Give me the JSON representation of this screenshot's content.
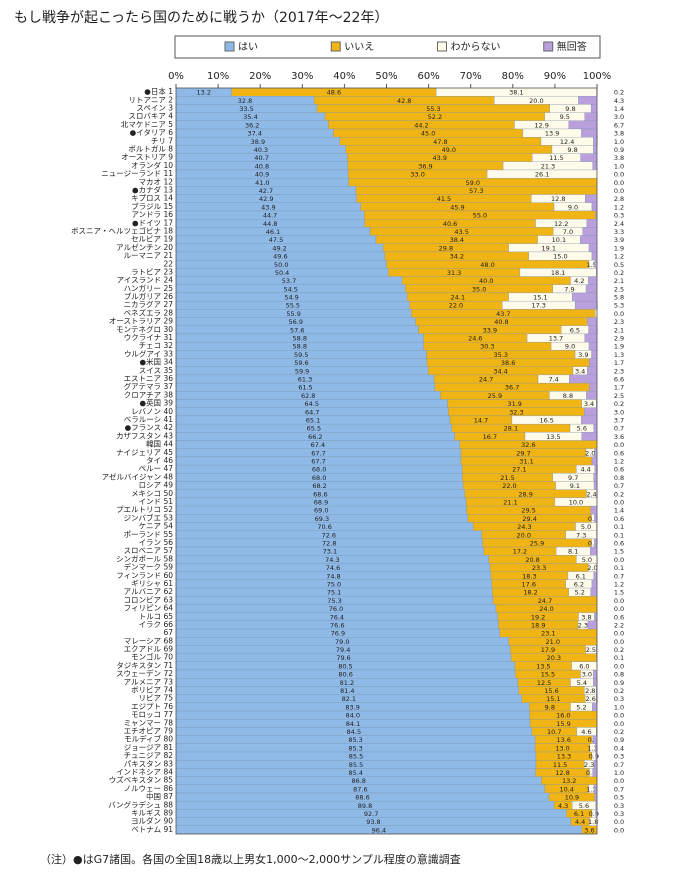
{
  "chart_data": {
    "type": "stacked_barh",
    "title": "もし戦争が起こったら国のために戦うか（2017年～22年）",
    "note": "（注）●はG7諸国。各国の全国18歳以上男女1,000～2,000サンプル程度の意識調査",
    "categories": [
      "●日本 1",
      "リトアニア 2",
      "スペイン 3",
      "スロバキア 4",
      "北マケドニア 5",
      "●イタリア 6",
      "チリ 7",
      "ポルトガル 8",
      "オーストリア 9",
      "オランダ 10",
      "ニュージーランド 11",
      "マカオ 12",
      "●カナダ 13",
      "キプロス 14",
      "ブラジル 15",
      "アンドラ 16",
      "●ドイツ 17",
      "ボスニア・ヘルツェゴビナ 18",
      "セルビア 19",
      "アルゼンチン 20",
      "ルーマニア 21",
      "22",
      "ラトビア 23",
      "アイスランド 24",
      "ハンガリー 25",
      "ブルガリア 26",
      "ニカラグア 27",
      "ベネズエラ 28",
      "オーストラリア 29",
      "モンテネグロ 30",
      "ウクライナ 31",
      "チェコ 32",
      "ウルグアイ 33",
      "●米国 34",
      "スイス 35",
      "エストニア 36",
      "グアテマラ 37",
      "クロアチア 38",
      "●英国 39",
      "レバノン 40",
      "ベラルーシ 41",
      "●フランス 42",
      "カザフスタン 43",
      "韓国 44",
      "ナイジェリア 45",
      "タイ 46",
      "ペルー 47",
      "アゼルバイジャン 48",
      "ロシア 49",
      "メキシコ 50",
      "インド 51",
      "プエルトリコ 52",
      "ジンバブエ 53",
      "ケニア 54",
      "ポーランド 55",
      "イラン 56",
      "スロベニア 57",
      "シンガポール 58",
      "デンマーク 59",
      "フィンランド 60",
      "ギリシャ 61",
      "アルバニア 62",
      "コロンビア 63",
      "フィリピン 64",
      "トルコ 65",
      "イラク 66",
      "67",
      "マレーシア 68",
      "エクアドル 69",
      "モンゴル 70",
      "タジキスタン 71",
      "スウェーデン 72",
      "アルメニア 73",
      "ボリビア 74",
      "リビア 75",
      "エジプト 76",
      "モロッコ 77",
      "ミャンマー 78",
      "エチオピア 79",
      "モルディブ 80",
      "ジョージア 81",
      "チュニジア 82",
      "パキスタン 83",
      "インドネシア 84",
      "ウズベキスタン 85",
      "ノルウェー 86",
      "中国 87",
      "バングラデシュ 88",
      "キルギス 89",
      "ヨルダン 90",
      "ベトナム 91"
    ],
    "series": [
      {
        "name": "はい",
        "color": "#8fb9e6",
        "values": [
          13.2,
          32.8,
          33.5,
          35.4,
          36.2,
          37.4,
          38.9,
          40.3,
          40.7,
          40.8,
          40.9,
          41.0,
          42.7,
          42.9,
          43.9,
          44.7,
          44.8,
          46.1,
          47.5,
          49.2,
          49.6,
          50.0,
          50.4,
          53.7,
          54.5,
          54.9,
          55.5,
          55.9,
          56.9,
          57.6,
          58.8,
          58.8,
          59.5,
          59.6,
          59.9,
          61.3,
          61.5,
          62.8,
          64.5,
          64.7,
          65.1,
          65.5,
          66.2,
          67.4,
          67.7,
          67.7,
          68.0,
          68.0,
          68.2,
          68.6,
          68.9,
          69.0,
          69.3,
          70.6,
          72.6,
          72.8,
          73.1,
          74.3,
          74.6,
          74.8,
          75.0,
          75.1,
          75.3,
          76.0,
          76.4,
          76.6,
          76.9,
          79.0,
          79.4,
          79.6,
          80.5,
          80.6,
          81.2,
          81.4,
          82.1,
          83.9,
          84.0,
          84.1,
          84.5,
          85.3,
          85.3,
          85.5,
          85.5,
          85.4,
          86.8,
          87.6,
          88.6,
          89.8,
          92.7,
          93.8,
          96.4
        ],
        "value_labels": [
          "13.2",
          "32.8",
          "33.5",
          "35.4",
          "36.2",
          "37.4",
          "38.9",
          "40.3",
          "40.7",
          "40.8",
          "40.9",
          "41.0",
          "42.7",
          "42.9",
          "43.9",
          "44.7",
          "44.8",
          "46.1",
          "47.5",
          "49.2",
          "49.6",
          "50.0",
          "50.4",
          "53.7",
          "54.5",
          "54.9",
          "55.5",
          "55.9",
          "56.9",
          "57.6",
          "58.8",
          "58.8",
          "59.5",
          "59.6",
          "59.9",
          "61.3",
          "61.5",
          "62.8",
          "64.5",
          "64.7",
          "65.1",
          "65.5",
          "66.2",
          "67.4",
          "67.7",
          "67.7",
          "68.0",
          "68.0",
          "68.2",
          "68.6",
          "68.9",
          "69.0",
          "69.3",
          "70.6",
          "72.6",
          "72.8",
          "73.1",
          "74.3",
          "74.6",
          "74.8",
          "75.0",
          "75.1",
          "75.3",
          "76.0",
          "76.4",
          "76.6",
          "76.9",
          "79.0",
          "79.4",
          "79.6",
          "80.5",
          "80.6",
          "81.2",
          "81.4",
          "82.1",
          "83.9",
          "84.0",
          "84.1",
          "84.5",
          "85.3",
          "85.3",
          "85.5",
          "85.5",
          "85.4",
          "86.8",
          "87.6",
          "88.6",
          "89.8",
          "92.7",
          "93.8",
          "96.4"
        ]
      },
      {
        "name": "いいえ",
        "color": "#f0b414",
        "values": [
          48.6,
          42.8,
          55.3,
          52.2,
          44.2,
          45.0,
          47.8,
          49.0,
          43.9,
          36.9,
          33.0,
          59.0,
          57.3,
          41.5,
          45.9,
          55.0,
          40.6,
          43.5,
          38.4,
          29.8,
          34.2,
          48.0,
          31.3,
          40.0,
          35.0,
          24.1,
          22.0,
          43.7,
          40.8,
          33.9,
          24.6,
          30.3,
          35.3,
          38.6,
          34.4,
          24.7,
          36.7,
          25.9,
          31.9,
          32.3,
          14.7,
          28.1,
          16.7,
          32.6,
          29.7,
          31.1,
          27.1,
          21.5,
          22.0,
          28.9,
          21.1,
          29.5,
          29.4,
          24.3,
          20.0,
          25.9,
          17.2,
          20.8,
          23.3,
          18.3,
          17.6,
          18.2,
          24.7,
          24.0,
          19.2,
          18.9,
          23.1,
          21.0,
          17.9,
          20.3,
          13.5,
          15.5,
          12.5,
          15.6,
          15.1,
          9.8,
          16.0,
          15.9,
          10.7,
          13.6,
          13.0,
          13.3,
          11.5,
          12.8,
          13.2,
          10.4,
          10.9,
          4.3,
          6.1,
          4.4,
          3.6
        ],
        "value_labels": [
          "48.6",
          "42.8",
          "55.3",
          "52.2",
          "44.2",
          "45.0",
          "47.8",
          "49.0",
          "43.9",
          "36.9",
          "33.0",
          "59.0",
          "57.3",
          "41.5",
          "45.9",
          "55.0",
          "40.6",
          "43.5",
          "38.4",
          "29.8",
          "34.2",
          "48.0",
          "31.3",
          "40.0",
          "35.0",
          "24.1",
          "22.0",
          "43.7",
          "40.8",
          "33.9",
          "24.6",
          "30.3",
          "35.3",
          "38.6",
          "34.4",
          "24.7",
          "36.7",
          "25.9",
          "31.9",
          "32.3",
          "14.7",
          "28.1",
          "16.7",
          "32.6",
          "29.7",
          "31.1",
          "27.1",
          "21.5",
          "22.0",
          "28.9",
          "21.1",
          "29.5",
          "29.4",
          "24.3",
          "20.0",
          "25.9",
          "17.2",
          "20.8",
          "23.3",
          "18.3",
          "17.6",
          "18.2",
          "24.7",
          "24.0",
          "19.2",
          "18.9",
          "23.1",
          "21.0",
          "17.9",
          "20.3",
          "13.5",
          "15.5",
          "12.5",
          "15.6",
          "15.1",
          "9.8",
          "16.0",
          "15.9",
          "10.7",
          "13.6",
          "13.0",
          "13.3",
          "11.5",
          "12.8",
          "13.2",
          "10.4",
          "10.9",
          "4.3",
          "6.1",
          "4.4",
          "3.6"
        ]
      },
      {
        "name": "わからない",
        "color": "#fffbea",
        "values": [
          38.1,
          20.0,
          9.8,
          9.5,
          12.9,
          13.9,
          12.4,
          9.8,
          11.5,
          21.3,
          26.1,
          0,
          0,
          12.8,
          9.0,
          0,
          12.2,
          7.0,
          10.1,
          19.1,
          15.0,
          1.5,
          18.1,
          4.2,
          7.9,
          15.1,
          17.3,
          0.4,
          0,
          6.5,
          13.7,
          9.0,
          3.9,
          0,
          3.4,
          7.4,
          0,
          8.8,
          3.4,
          0,
          16.5,
          5.6,
          13.5,
          0,
          2.0,
          0,
          4.4,
          9.7,
          9.1,
          2.4,
          10.0,
          0,
          0.7,
          5.0,
          7.3,
          0.7,
          8.1,
          5.0,
          2.0,
          6.1,
          6.2,
          5.2,
          0,
          0,
          3.8,
          2.3,
          0,
          0,
          2.5,
          0,
          6.0,
          3.0,
          5.4,
          2.8,
          2.6,
          5.2,
          0,
          0,
          4.6,
          0.2,
          1.3,
          0.9,
          2.3,
          0.8,
          0,
          1.3,
          0,
          5.6,
          0.9,
          1.8,
          0
        ],
        "value_labels": [
          "38.1",
          "20.0",
          "9.8",
          "9.5",
          "12.9",
          "13.9",
          "12.4",
          "9.8",
          "11.5",
          "21.3",
          "26.1",
          null,
          null,
          "12.8",
          "9.0",
          null,
          "12.2",
          "7.0",
          "10.1",
          "19.1",
          "15.0",
          "1.5",
          "18.1",
          "4.2",
          "7.9",
          "15.1",
          "17.3",
          null,
          null,
          "6.5",
          "13.7",
          "9.0",
          "3.9",
          null,
          "3.4",
          "7.4",
          null,
          "8.8",
          "3.4",
          null,
          "16.5",
          "5.6",
          "13.5",
          null,
          "2.0",
          null,
          "4.4",
          "9.7",
          "9.1",
          "2.4",
          "10.0",
          null,
          "0.7",
          "5.0",
          "7.3",
          "0.7",
          "8.1",
          "5.0",
          "2.0",
          "6.1",
          "6.2",
          "5.2",
          null,
          null,
          "3.8",
          "2.3",
          null,
          null,
          "2.5",
          null,
          "6.0",
          "3.0",
          "5.4",
          "2.8",
          "2.6",
          "5.2",
          null,
          null,
          "4.6",
          "0.2",
          "1.3",
          "0.9",
          "2.3",
          "0.8",
          null,
          "1.3",
          null,
          "5.6",
          "0.9",
          "1.8",
          null
        ]
      },
      {
        "name": "無回答",
        "color": "#b9a0dc",
        "values": [
          0.2,
          4.3,
          1.4,
          3.0,
          6.7,
          3.8,
          1.0,
          0.9,
          3.8,
          1.0,
          0.0,
          0.0,
          0.0,
          2.8,
          1.2,
          0.3,
          2.4,
          3.3,
          3.9,
          1.9,
          1.2,
          0.5,
          0.2,
          2.1,
          2.5,
          5.8,
          5.3,
          0.0,
          2.3,
          2.1,
          2.9,
          1.9,
          1.3,
          1.7,
          2.3,
          6.6,
          1.7,
          2.5,
          0.2,
          3.0,
          3.7,
          0.7,
          3.6,
          0.0,
          0.6,
          1.2,
          0.6,
          0.8,
          0.7,
          0.2,
          0.0,
          1.4,
          0.6,
          0.1,
          0.1,
          0.6,
          1.5,
          0.0,
          0.1,
          0.7,
          1.2,
          1.5,
          0.0,
          0.0,
          0.6,
          2.2,
          0.0,
          0.0,
          0.2,
          0.1,
          0.0,
          0.8,
          0.9,
          0.2,
          0.3,
          1.0,
          0.0,
          0.0,
          0.2,
          0.9,
          0.4,
          0.3,
          0.7,
          1.0,
          0.0,
          0.7,
          0.5,
          0.3,
          0.3,
          0.0,
          0.0
        ],
        "value_labels": [
          "0.2",
          "4.3",
          "1.4",
          "3.0",
          "6.7",
          "3.8",
          "1.0",
          "0.9",
          "3.8",
          "1.0",
          "0.0",
          "0.0",
          "0.0",
          "2.8",
          "1.2",
          "0.3",
          "2.4",
          "3.3",
          "3.9",
          "1.9",
          "1.2",
          "0.5",
          "0.2",
          "2.1",
          "2.5",
          "5.8",
          "5.3",
          "0.0",
          "2.3",
          "2.1",
          "2.9",
          "1.9",
          "1.3",
          "1.7",
          "2.3",
          "6.6",
          "1.7",
          "2.5",
          "0.2",
          "3.0",
          "3.7",
          "0.7",
          "3.6",
          "0.0",
          "0.6",
          "1.2",
          "0.6",
          "0.8",
          "0.7",
          "0.2",
          "0.0",
          "1.4",
          "0.6",
          "0.1",
          "0.1",
          "0.6",
          "1.5",
          "0.0",
          "0.1",
          "0.7",
          "1.2",
          "1.5",
          "0.0",
          "0.0",
          "0.6",
          "2.2",
          "0.0",
          "0.0",
          "0.2",
          "0.1",
          "0.0",
          "0.8",
          "0.9",
          "0.2",
          "0.3",
          "1.0",
          "0.0",
          "0.0",
          "0.2",
          "0.9",
          "0.4",
          "0.3",
          "0.7",
          "1.0",
          "0.0",
          "0.7",
          "0.5",
          "0.3",
          "0.3",
          "0.0",
          "0.0"
        ]
      }
    ],
    "xlim": [
      0,
      100
    ],
    "xticks": [
      {
        "value": 0,
        "label": "0%"
      },
      {
        "value": 10,
        "label": "10%"
      },
      {
        "value": 20,
        "label": "20%"
      },
      {
        "value": 30,
        "label": "30%"
      },
      {
        "value": 40,
        "label": "40%"
      },
      {
        "value": 50,
        "label": "50%"
      },
      {
        "value": 60,
        "label": "60%"
      },
      {
        "value": 70,
        "label": "70%"
      },
      {
        "value": 80,
        "label": "80%"
      },
      {
        "value": 90,
        "label": "90%"
      },
      {
        "value": 100,
        "label": "100%"
      }
    ]
  }
}
